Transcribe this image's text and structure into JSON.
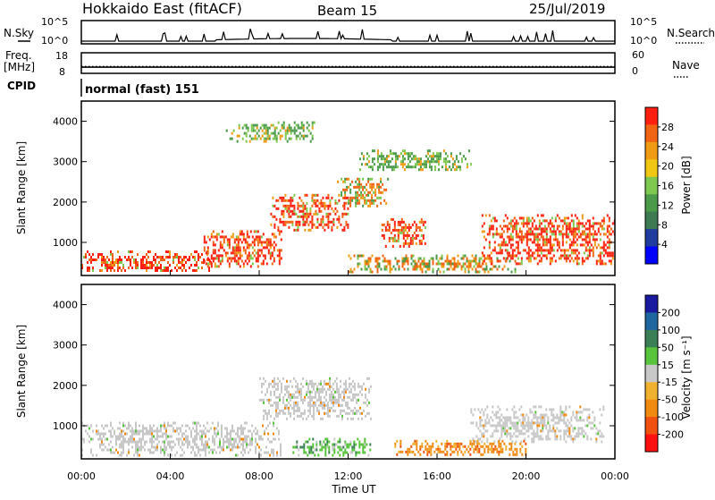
{
  "header": {
    "station": "Hokkaido East (fitACF)",
    "beam": "Beam 15",
    "date": "25/Jul/2019"
  },
  "nsky_panel": {
    "left_label": "N.Sky",
    "right_label": "N.Search",
    "left_ticks": [
      "10^5",
      "10^0"
    ],
    "right_ticks": [
      "10^5",
      "10^0"
    ]
  },
  "freq_panel": {
    "left_label_1": "Freq.",
    "left_label_2": "[MHz]",
    "left_ticks": [
      "18",
      "8"
    ],
    "right_ticks": [
      "60",
      "0"
    ],
    "right_label": "Nave",
    "frequency_mhz": 11,
    "nave": 20
  },
  "cpid_panel": {
    "label": "CPID",
    "text": "normal (fast) 151"
  },
  "x_axis": {
    "label": "Time UT",
    "ticks": [
      "00:00",
      "04:00",
      "08:00",
      "12:00",
      "16:00",
      "20:00",
      "00:00"
    ]
  },
  "colors": {
    "power": [
      "#0000ff",
      "#1f3c9e",
      "#3d7a52",
      "#4a9a4a",
      "#7ec850",
      "#f0c814",
      "#f09b14",
      "#f06414",
      "#ff2010"
    ],
    "velocity": [
      "#1a1aa0",
      "#1f66a0",
      "#3a7f55",
      "#57c43c",
      "#c8c8c8",
      "#f0b030",
      "#f08a10",
      "#f05010",
      "#ff1010"
    ]
  },
  "chart_data": [
    {
      "type": "heatmap",
      "title": "",
      "xlabel": "",
      "ylabel": "Slant Range [km]",
      "xlim": [
        0,
        24
      ],
      "ylim": [
        180,
        4500
      ],
      "ytick_labels": [
        "1000",
        "2000",
        "3000",
        "4000"
      ],
      "colorbar": {
        "label": "Power [dB]",
        "tick_labels": [
          "4",
          "8",
          "12",
          "16",
          "20",
          "24",
          "28"
        ]
      },
      "features": [
        {
          "t": [
            0.0,
            5.8
          ],
          "r": [
            300,
            800
          ],
          "level": "high"
        },
        {
          "t": [
            5.5,
            9.0
          ],
          "r": [
            400,
            1300
          ],
          "level": "high"
        },
        {
          "t": [
            8.5,
            12.0
          ],
          "r": [
            1300,
            2200
          ],
          "level": "high"
        },
        {
          "t": [
            11.5,
            13.8
          ],
          "r": [
            1900,
            2600
          ],
          "level": "medium"
        },
        {
          "t": [
            13.5,
            15.5
          ],
          "r": [
            900,
            1600
          ],
          "level": "high"
        },
        {
          "t": [
            12.0,
            19.5
          ],
          "r": [
            300,
            700
          ],
          "level": "medium"
        },
        {
          "t": [
            18.0,
            24.0
          ],
          "r": [
            500,
            1700
          ],
          "level": "high"
        },
        {
          "t": [
            12.5,
            17.5
          ],
          "r": [
            2800,
            3300
          ],
          "level": "low"
        },
        {
          "t": [
            6.5,
            10.5
          ],
          "r": [
            3500,
            4000
          ],
          "level": "low"
        }
      ]
    },
    {
      "type": "heatmap",
      "title": "",
      "xlabel": "Time UT",
      "ylabel": "Slant Range [km]",
      "xlim": [
        0,
        24
      ],
      "ylim": [
        180,
        4500
      ],
      "ytick_labels": [
        "1000",
        "2000",
        "3000",
        "4000"
      ],
      "colorbar": {
        "label": "Velocity [m s⁻¹]",
        "tick_labels": [
          "200",
          "100",
          "50",
          "15",
          "-15",
          "-50",
          "-100",
          "-200"
        ]
      },
      "features": [
        {
          "t": [
            0.0,
            9.0
          ],
          "r": [
            300,
            1100
          ],
          "level": "ground scatter (grey)"
        },
        {
          "t": [
            8.0,
            13.0
          ],
          "r": [
            1200,
            2200
          ],
          "level": "ground scatter (grey)"
        },
        {
          "t": [
            17.5,
            23.5
          ],
          "r": [
            600,
            1500
          ],
          "level": "ground scatter (grey)"
        },
        {
          "t": [
            9.5,
            13.0
          ],
          "r": [
            300,
            700
          ],
          "level": "positive (green)"
        },
        {
          "t": [
            14.0,
            20.0
          ],
          "r": [
            300,
            650
          ],
          "level": "negative (orange)"
        }
      ]
    }
  ]
}
